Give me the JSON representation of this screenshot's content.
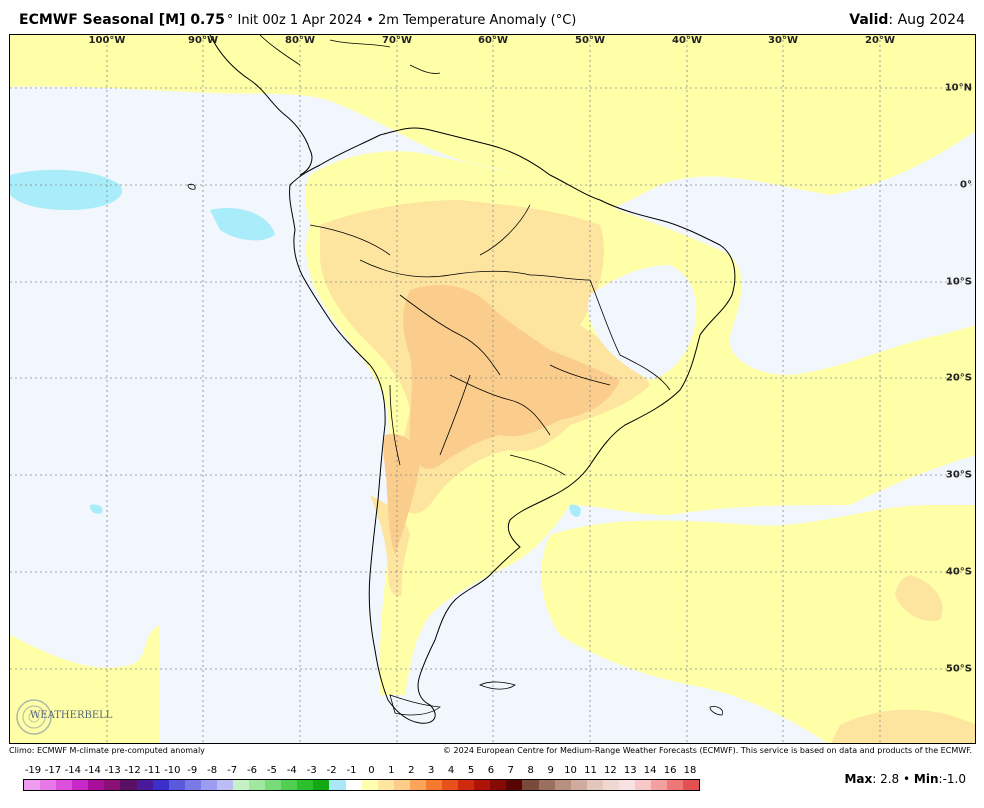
{
  "header": {
    "title_bold": "ECMWF Seasonal [M] 0.75",
    "title_rest": "° Init 00z 1 Apr 2024 • 2m Temperature Anomaly (°C)",
    "valid_label": "Valid",
    "valid_value": ": Aug 2024"
  },
  "map": {
    "lon_labels": [
      "100°W",
      "90°W",
      "80°W",
      "70°W",
      "60°W",
      "50°W",
      "40°W",
      "30°W",
      "20°W"
    ],
    "lat_labels": [
      "10°N",
      "0°",
      "10°S",
      "20°S",
      "30°S",
      "40°S",
      "50°S"
    ],
    "colors": {
      "ocean_neutral": "#f2f6fd",
      "anomaly_0_1": "#ffffa8",
      "anomaly_1_2": "#fde5a0",
      "anomaly_2_3": "#fbcd8c",
      "anomaly_neg": "#a9ecfa",
      "coast": "#000000"
    }
  },
  "logo": {
    "text": "WEATHERBELL"
  },
  "footer": {
    "left": "Climo: ECMWF M-climate pre-computed anomaly",
    "right": "© 2024 European Centre for Medium-Range Weather Forecasts (ECMWF). This service is based on data and products of the ECMWF."
  },
  "legend": {
    "labels": [
      "-19",
      "-17",
      "-14",
      "-14",
      "-13",
      "-12",
      "-11",
      "-10",
      "-9",
      "-8",
      "-7",
      "-6",
      "-5",
      "-4",
      "-3",
      "-2",
      "-1",
      "0",
      "1",
      "2",
      "3",
      "4",
      "5",
      "6",
      "7",
      "8",
      "9",
      "10",
      "11",
      "12",
      "13",
      "14",
      "16",
      "18"
    ],
    "colors": [
      "#f09cf0",
      "#e878e8",
      "#dc50dc",
      "#c828c8",
      "#a8109c",
      "#8a1078",
      "#5a1066",
      "#4a1a9a",
      "#3c2ec8",
      "#5a5adc",
      "#7a7ae6",
      "#9c9cf0",
      "#bcbcf6",
      "#c6f0c6",
      "#a0e8a0",
      "#78dc78",
      "#50d050",
      "#2cc02c",
      "#14a814",
      "#a8e8f8",
      "#ffffff",
      "#ffffb0",
      "#ffe6a0",
      "#fdcc8a",
      "#fba45a",
      "#f57a30",
      "#e8501c",
      "#d02a0e",
      "#b01408",
      "#880a04",
      "#5a0404",
      "#7a4a3a",
      "#9c7060",
      "#b89080",
      "#d0aca0",
      "#e2c8bc",
      "#eed8d0",
      "#f6e2e2",
      "#f8c8c8",
      "#f4a0a0",
      "#ee7878",
      "#e45050"
    ]
  },
  "stats": {
    "max_label": "Max",
    "max_value": "2.8",
    "min_label": "Min",
    "min_value": "-1.0"
  }
}
